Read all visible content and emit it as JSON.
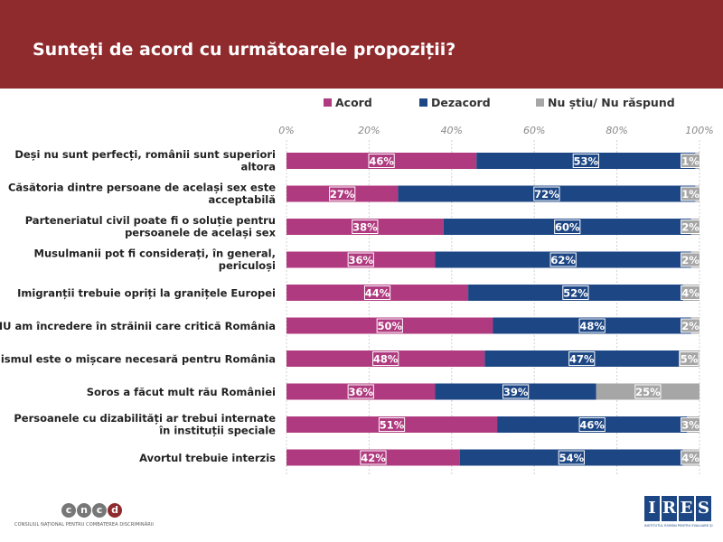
{
  "header": {
    "title": "Sunteți de acord cu următoarele propoziții?"
  },
  "colors": {
    "acord": "#b03a7f",
    "dezacord": "#1d4684",
    "nu_stiu": "#a6a6a6",
    "header": "#8f2a2d"
  },
  "chart_data": {
    "type": "bar",
    "orientation": "horizontal",
    "stacked": true,
    "legend_position": "top",
    "grid": true,
    "xlim": [
      0,
      100
    ],
    "x_ticks": [
      "0%",
      "20%",
      "40%",
      "60%",
      "80%",
      "100%"
    ],
    "categories": [
      "Deși nu sunt perfecți,  românii sunt superiori altora",
      "Căsătoria dintre persoane de același sex este acceptabilă",
      "Parteneriatul civil poate fi o soluție pentru persoanele de același sex",
      "Musulmanii pot fi considerați, în general, periculoși",
      "Imigranții trebuie opriți la granițele Europei",
      "NU am încredere în străinii care critică România",
      "Naționalismul este o mișcare necesară pentru România",
      "Soros a făcut mult rău României",
      "Persoanele cu dizabilități ar trebui internate în instituții speciale",
      "Avortul trebuie interzis"
    ],
    "series": [
      {
        "name": "Acord",
        "values": [
          46,
          27,
          38,
          36,
          44,
          50,
          48,
          36,
          51,
          42
        ]
      },
      {
        "name": "Dezacord",
        "values": [
          53,
          72,
          60,
          62,
          52,
          48,
          47,
          39,
          46,
          54
        ]
      },
      {
        "name": "Nu știu/ Nu răspund",
        "values": [
          1,
          1,
          2,
          2,
          4,
          2,
          5,
          25,
          3,
          4
        ]
      }
    ]
  },
  "footer": {
    "cncd_letters": [
      "c",
      "n",
      "c",
      "d"
    ],
    "cncd_text": "CONSILIUL NAȚIONAL PENTRU COMBATEREA DISCRIMINĂRII",
    "ires_letters": [
      "I",
      "R",
      "E",
      "S"
    ],
    "ires_text": "INSTITUTUL ROMÂN PENTRU EVALUARE ȘI STRATEGIE"
  }
}
